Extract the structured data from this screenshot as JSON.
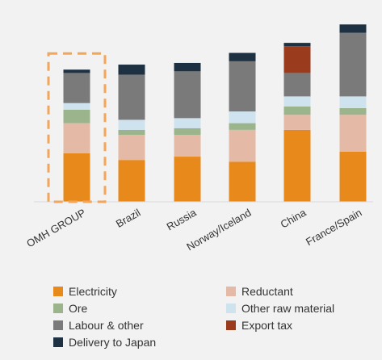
{
  "chart_data": {
    "type": "bar",
    "stacked": true,
    "categories": [
      "OMH GROUP",
      "Brazil",
      "Russia",
      "Norway/Iceland",
      "China",
      "France/Spain"
    ],
    "series": [
      {
        "name": "Electricity",
        "color": "#e8891c",
        "values": [
          29,
          25,
          27,
          24,
          43,
          30
        ]
      },
      {
        "name": "Reductant",
        "color": "#e4b9a6",
        "values": [
          18,
          15,
          13,
          19,
          9,
          22
        ]
      },
      {
        "name": "Ore",
        "color": "#9cb48c",
        "values": [
          8,
          3,
          4,
          4,
          5,
          4
        ]
      },
      {
        "name": "Other raw material",
        "color": "#cfe3ef",
        "values": [
          4,
          6,
          6,
          7,
          6,
          7
        ]
      },
      {
        "name": "Labour & other",
        "color": "#7a7a7a",
        "values": [
          18,
          27,
          28,
          30,
          14,
          38
        ]
      },
      {
        "name": "Export tax",
        "color": "#9a3b1e",
        "values": [
          0,
          0,
          0,
          0,
          16,
          0
        ]
      },
      {
        "name": "Delivery to Japan",
        "color": "#1e3142",
        "values": [
          2,
          6,
          5,
          5,
          2,
          5
        ]
      }
    ],
    "ylim": [
      0,
      110
    ],
    "grid": false,
    "highlight_category": "OMH GROUP",
    "highlight_color": "#f3a65a",
    "legend_position": "bottom"
  }
}
